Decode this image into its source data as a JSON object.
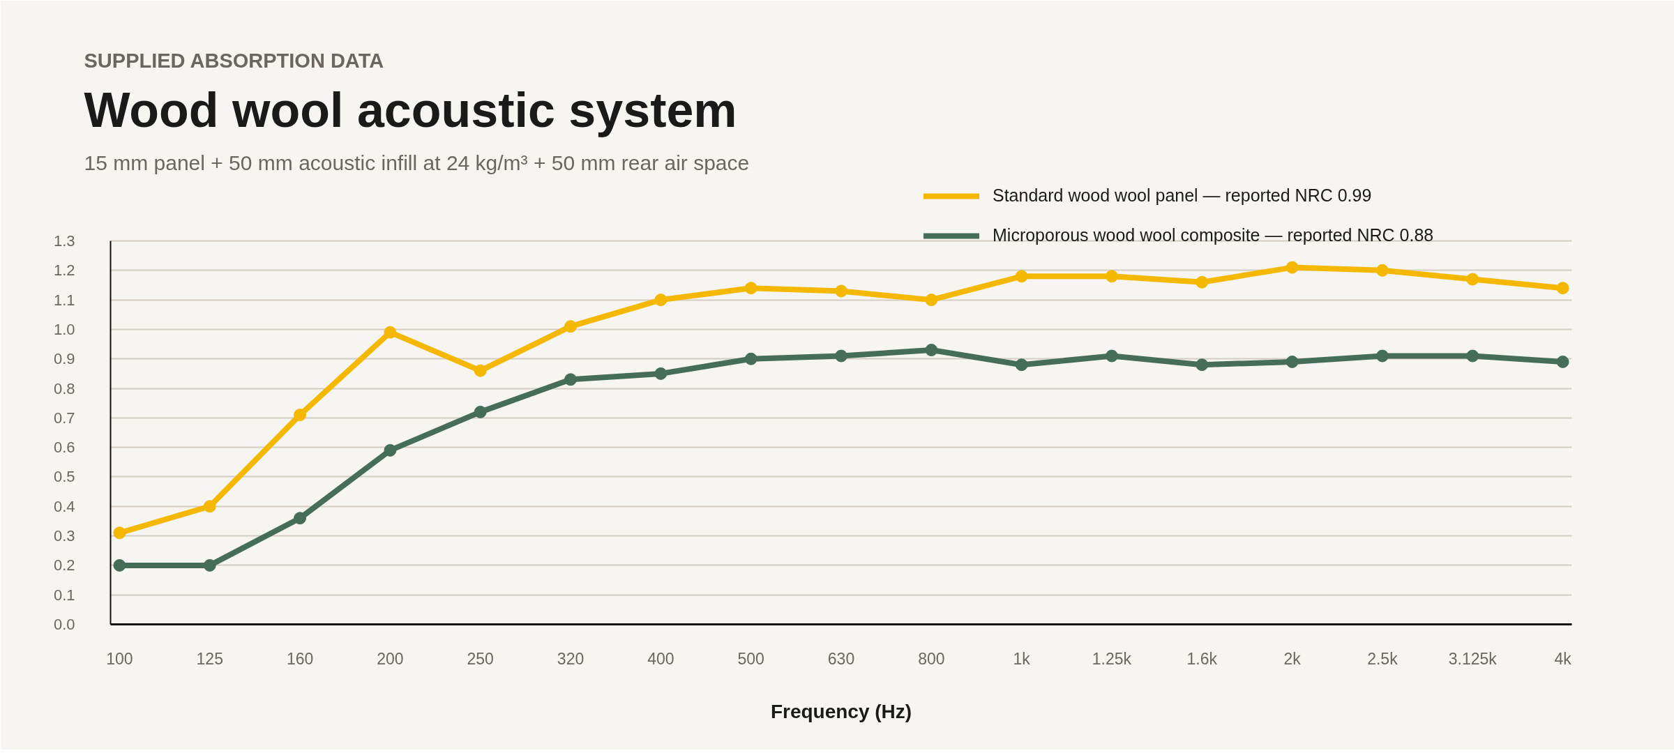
{
  "chart_data": {
    "type": "line",
    "annotations": [
      "SUPPLIED ABSORPTION DATA"
    ],
    "title": "Wood wool acoustic system",
    "subtitle": "15 mm panel + 50 mm acoustic infill at 24 kg/m³ + 50 mm rear air space",
    "xlabel": "Frequency (Hz)",
    "categories": [
      "100",
      "125",
      "160",
      "200",
      "250",
      "320",
      "400",
      "500",
      "630",
      "800",
      "1k",
      "1.25k",
      "1.6k",
      "2k",
      "2.5k",
      "3.125k",
      "4k"
    ],
    "series": [
      {
        "name": "Standard wood wool panel — reported NRC 0.99",
        "color": "#f4b800",
        "values": [
          0.31,
          0.4,
          0.71,
          0.99,
          0.86,
          1.01,
          1.1,
          1.14,
          1.13,
          1.1,
          1.18,
          1.18,
          1.16,
          1.21,
          1.2,
          1.17,
          1.14
        ]
      },
      {
        "name": "Microporous wood wool composite — reported NRC 0.88",
        "color": "#466d5a",
        "values": [
          0.2,
          0.2,
          0.36,
          0.59,
          0.72,
          0.83,
          0.85,
          0.9,
          0.91,
          0.93,
          0.88,
          0.91,
          0.88,
          0.89,
          0.91,
          0.91,
          0.89
        ]
      }
    ],
    "ylim": [
      0,
      1.3
    ],
    "yticks": [
      {
        "value": 0,
        "label": "0.0"
      },
      0.1,
      0.2,
      0.3,
      0.4,
      0.5,
      0.6,
      0.7,
      0.8,
      0.9,
      {
        "value": 1,
        "label": "1.0"
      },
      1.1,
      1.2,
      1.3
    ],
    "grid": "y",
    "legend": "top right",
    "marker": "circle",
    "line_style": "solid"
  }
}
